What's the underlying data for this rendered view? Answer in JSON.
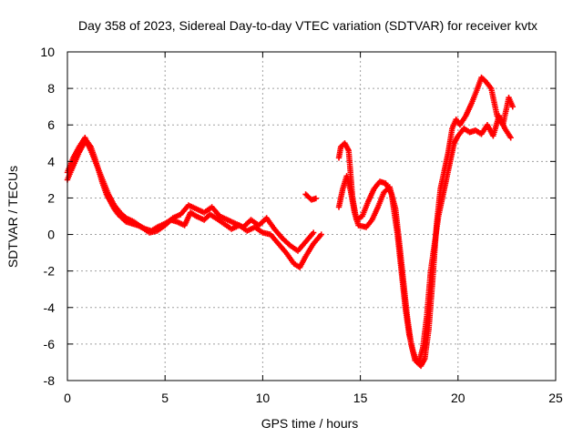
{
  "chart_data": {
    "type": "scatter",
    "title": "Day 358 of 2023, Sidereal Day-to-day VTEC variation (SDTVAR) for receiver kvtx",
    "xlabel": "GPS time / hours",
    "ylabel": "SDTVAR / TECUs",
    "xlim": [
      0,
      25
    ],
    "ylim": [
      -8,
      10
    ],
    "xticks": [
      0,
      5,
      10,
      15,
      20,
      25
    ],
    "yticks": [
      -8,
      -6,
      -4,
      -2,
      0,
      2,
      4,
      6,
      8,
      10
    ],
    "grid": true,
    "marker": "+",
    "color": "#ff0000",
    "series": [
      {
        "name": "",
        "x": [
          0.0,
          0.2,
          0.4,
          0.6,
          0.8,
          1.0,
          1.2,
          1.4,
          1.6,
          1.8,
          2.0,
          2.2,
          2.4,
          2.6,
          2.8,
          3.0,
          3.3,
          3.6,
          4.0,
          4.3,
          4.6,
          5.0,
          5.3,
          5.6,
          6.0,
          6.3,
          6.6,
          7.0,
          7.3,
          7.6,
          8.0,
          8.4,
          8.8,
          9.2,
          9.6,
          10.0,
          10.4,
          10.8,
          11.2,
          11.6,
          11.9,
          12.2,
          12.6,
          13.0
        ],
        "y": [
          3.0,
          3.5,
          4.0,
          4.5,
          4.9,
          5.1,
          4.8,
          4.2,
          3.5,
          2.8,
          2.2,
          1.8,
          1.4,
          1.1,
          0.9,
          0.7,
          0.6,
          0.5,
          0.3,
          0.2,
          0.4,
          0.6,
          0.8,
          0.7,
          0.5,
          1.2,
          1.0,
          0.8,
          1.1,
          0.9,
          0.6,
          0.3,
          0.5,
          0.2,
          0.4,
          0.1,
          0.0,
          -0.5,
          -1.0,
          -1.6,
          -1.8,
          -1.2,
          -0.5,
          0.0
        ]
      },
      {
        "name": "",
        "x": [
          0.0,
          0.3,
          0.6,
          0.9,
          1.2,
          1.5,
          1.8,
          2.1,
          2.4,
          2.7,
          3.0,
          3.4,
          3.8,
          4.2,
          4.6,
          5.0,
          5.4,
          5.8,
          6.2,
          6.6,
          7.0,
          7.4,
          7.8,
          8.2,
          8.6,
          9.0,
          9.4,
          9.8,
          10.2,
          10.6,
          11.0,
          11.4,
          11.8,
          12.2,
          12.6
        ],
        "y": [
          3.4,
          4.2,
          4.8,
          5.3,
          4.6,
          3.8,
          3.0,
          2.2,
          1.6,
          1.2,
          0.9,
          0.7,
          0.4,
          0.1,
          0.2,
          0.5,
          0.9,
          1.1,
          1.6,
          1.4,
          1.2,
          1.5,
          1.0,
          0.8,
          0.6,
          0.4,
          0.8,
          0.5,
          0.9,
          0.3,
          -0.2,
          -0.6,
          -0.9,
          -0.4,
          0.1
        ]
      },
      {
        "name": "",
        "x": [
          12.2,
          12.5,
          12.8,
          13.9,
          14.0,
          14.2,
          14.4,
          14.6,
          14.8,
          15.1,
          15.4,
          15.7,
          16.0,
          16.3,
          16.6,
          16.9,
          17.1,
          17.3,
          17.5,
          17.7,
          17.9,
          18.1,
          18.3,
          18.5,
          18.7,
          18.9,
          19.1,
          19.3,
          19.5,
          19.7,
          19.9,
          20.1,
          20.4,
          20.7,
          21.0,
          21.2,
          21.4,
          21.7,
          22.0,
          22.3,
          22.6,
          22.8
        ],
        "y": [
          2.2,
          1.9,
          2.0,
          4.2,
          4.8,
          5.0,
          4.6,
          2.0,
          0.8,
          1.0,
          1.8,
          2.5,
          2.9,
          2.8,
          2.2,
          0.0,
          -2.0,
          -4.0,
          -5.5,
          -6.4,
          -7.0,
          -7.2,
          -6.8,
          -5.2,
          -2.5,
          0.5,
          2.5,
          3.5,
          4.5,
          5.8,
          6.3,
          6.0,
          6.5,
          7.2,
          8.0,
          8.6,
          8.4,
          8.0,
          6.5,
          6.0,
          7.5,
          7.0
        ]
      },
      {
        "name": "",
        "x": [
          13.9,
          14.1,
          14.3,
          14.5,
          14.7,
          14.9,
          15.3,
          15.6,
          15.9,
          16.2,
          16.5,
          16.8,
          17.0,
          17.2,
          17.4,
          17.6,
          17.8,
          18.0,
          18.2,
          18.4,
          18.6,
          18.8,
          19.0,
          19.2,
          19.4,
          19.6,
          19.8,
          20.0,
          20.3,
          20.6,
          20.9,
          21.2,
          21.5,
          21.8,
          22.1,
          22.4,
          22.7
        ],
        "y": [
          1.5,
          2.5,
          3.2,
          2.4,
          1.2,
          0.5,
          0.4,
          0.8,
          1.5,
          2.3,
          2.6,
          1.4,
          -0.5,
          -2.5,
          -4.5,
          -6.0,
          -6.9,
          -7.0,
          -6.2,
          -4.5,
          -2.0,
          -0.5,
          1.0,
          2.0,
          3.0,
          4.0,
          5.0,
          5.4,
          5.8,
          5.6,
          5.7,
          5.5,
          6.0,
          5.4,
          6.5,
          5.8,
          5.3
        ]
      }
    ]
  }
}
